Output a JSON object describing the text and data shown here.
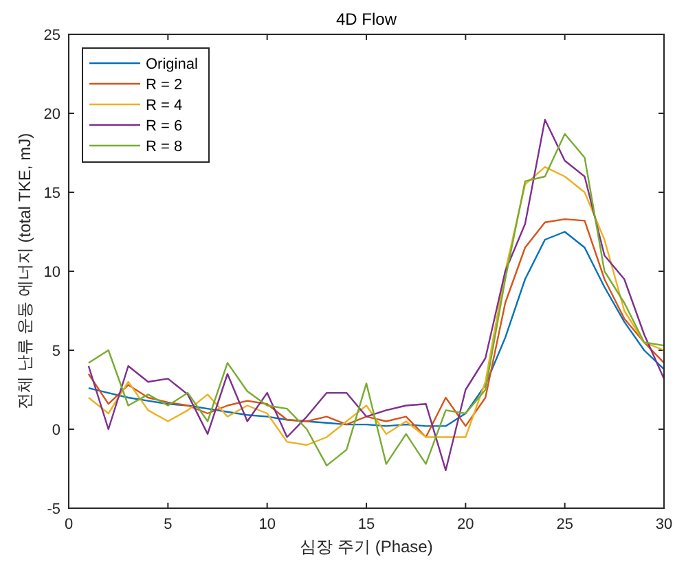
{
  "chart_data": {
    "type": "line",
    "title": "4D Flow",
    "xlabel": "심장 주기 (Phase)",
    "ylabel": "전체 난류 운동 에너지 (total TKE, mJ)",
    "x": [
      1,
      2,
      3,
      4,
      5,
      6,
      7,
      8,
      9,
      10,
      11,
      12,
      13,
      14,
      15,
      16,
      17,
      18,
      19,
      20,
      21,
      22,
      23,
      24,
      25,
      26,
      27,
      28,
      29,
      30
    ],
    "xlim": [
      0,
      30
    ],
    "xticks": [
      0,
      5,
      10,
      15,
      20,
      25,
      30
    ],
    "ylim": [
      -5,
      25
    ],
    "yticks": [
      -5,
      0,
      5,
      10,
      15,
      20,
      25
    ],
    "grid": false,
    "legend": "top left",
    "marker": "none",
    "line_style": "solid",
    "series": [
      {
        "name": "Original",
        "color": "#0072bd",
        "values": [
          2.6,
          2.3,
          2.0,
          1.8,
          1.6,
          1.5,
          1.3,
          1.1,
          0.9,
          0.8,
          0.6,
          0.5,
          0.4,
          0.3,
          0.3,
          0.2,
          0.3,
          0.2,
          0.2,
          1.0,
          2.8,
          5.8,
          9.5,
          12,
          12.5,
          11.5,
          9,
          6.8,
          5,
          3.8
        ]
      },
      {
        "name": "R = 2",
        "color": "#d95319",
        "values": [
          3.5,
          1.6,
          2.8,
          2.0,
          1.7,
          1.5,
          1.0,
          1.5,
          1.8,
          1.6,
          0.6,
          0.5,
          0.8,
          0.3,
          0.8,
          0.5,
          0.8,
          -0.5,
          2.0,
          0.2,
          2,
          8,
          11.5,
          13.1,
          13.3,
          13.2,
          9.5,
          7,
          5.5,
          4.2
        ]
      },
      {
        "name": "R = 4",
        "color": "#edb120",
        "values": [
          2.0,
          1.0,
          3.0,
          1.2,
          0.5,
          1.2,
          2.2,
          0.8,
          1.5,
          1.0,
          -0.8,
          -1.0,
          -0.5,
          0.5,
          1.5,
          -0.3,
          0.5,
          -0.5,
          -0.5,
          -0.5,
          3,
          10,
          15.5,
          16.6,
          16,
          15,
          12,
          7.5,
          5.5,
          5
        ]
      },
      {
        "name": "R = 6",
        "color": "#7e2f8e",
        "values": [
          4.0,
          0.0,
          4.0,
          3.0,
          3.2,
          2.2,
          -0.3,
          3.5,
          0.5,
          2.3,
          -0.5,
          0.8,
          2.3,
          2.3,
          0.8,
          1.2,
          1.5,
          1.6,
          -2.6,
          2.5,
          4.5,
          10,
          13,
          19.6,
          17,
          16,
          11,
          9.5,
          6,
          3.2
        ]
      },
      {
        "name": "R = 8",
        "color": "#77ac30",
        "values": [
          4.2,
          5.0,
          1.5,
          2.2,
          1.5,
          2.3,
          0.5,
          4.2,
          2.4,
          1.5,
          1.3,
          0,
          -2.3,
          -1.3,
          2.9,
          -2.2,
          -0.3,
          -2.2,
          1.2,
          1.0,
          2.5,
          9.5,
          15.7,
          16,
          18.7,
          17.2,
          10,
          8,
          5.5,
          5.3
        ]
      }
    ]
  }
}
